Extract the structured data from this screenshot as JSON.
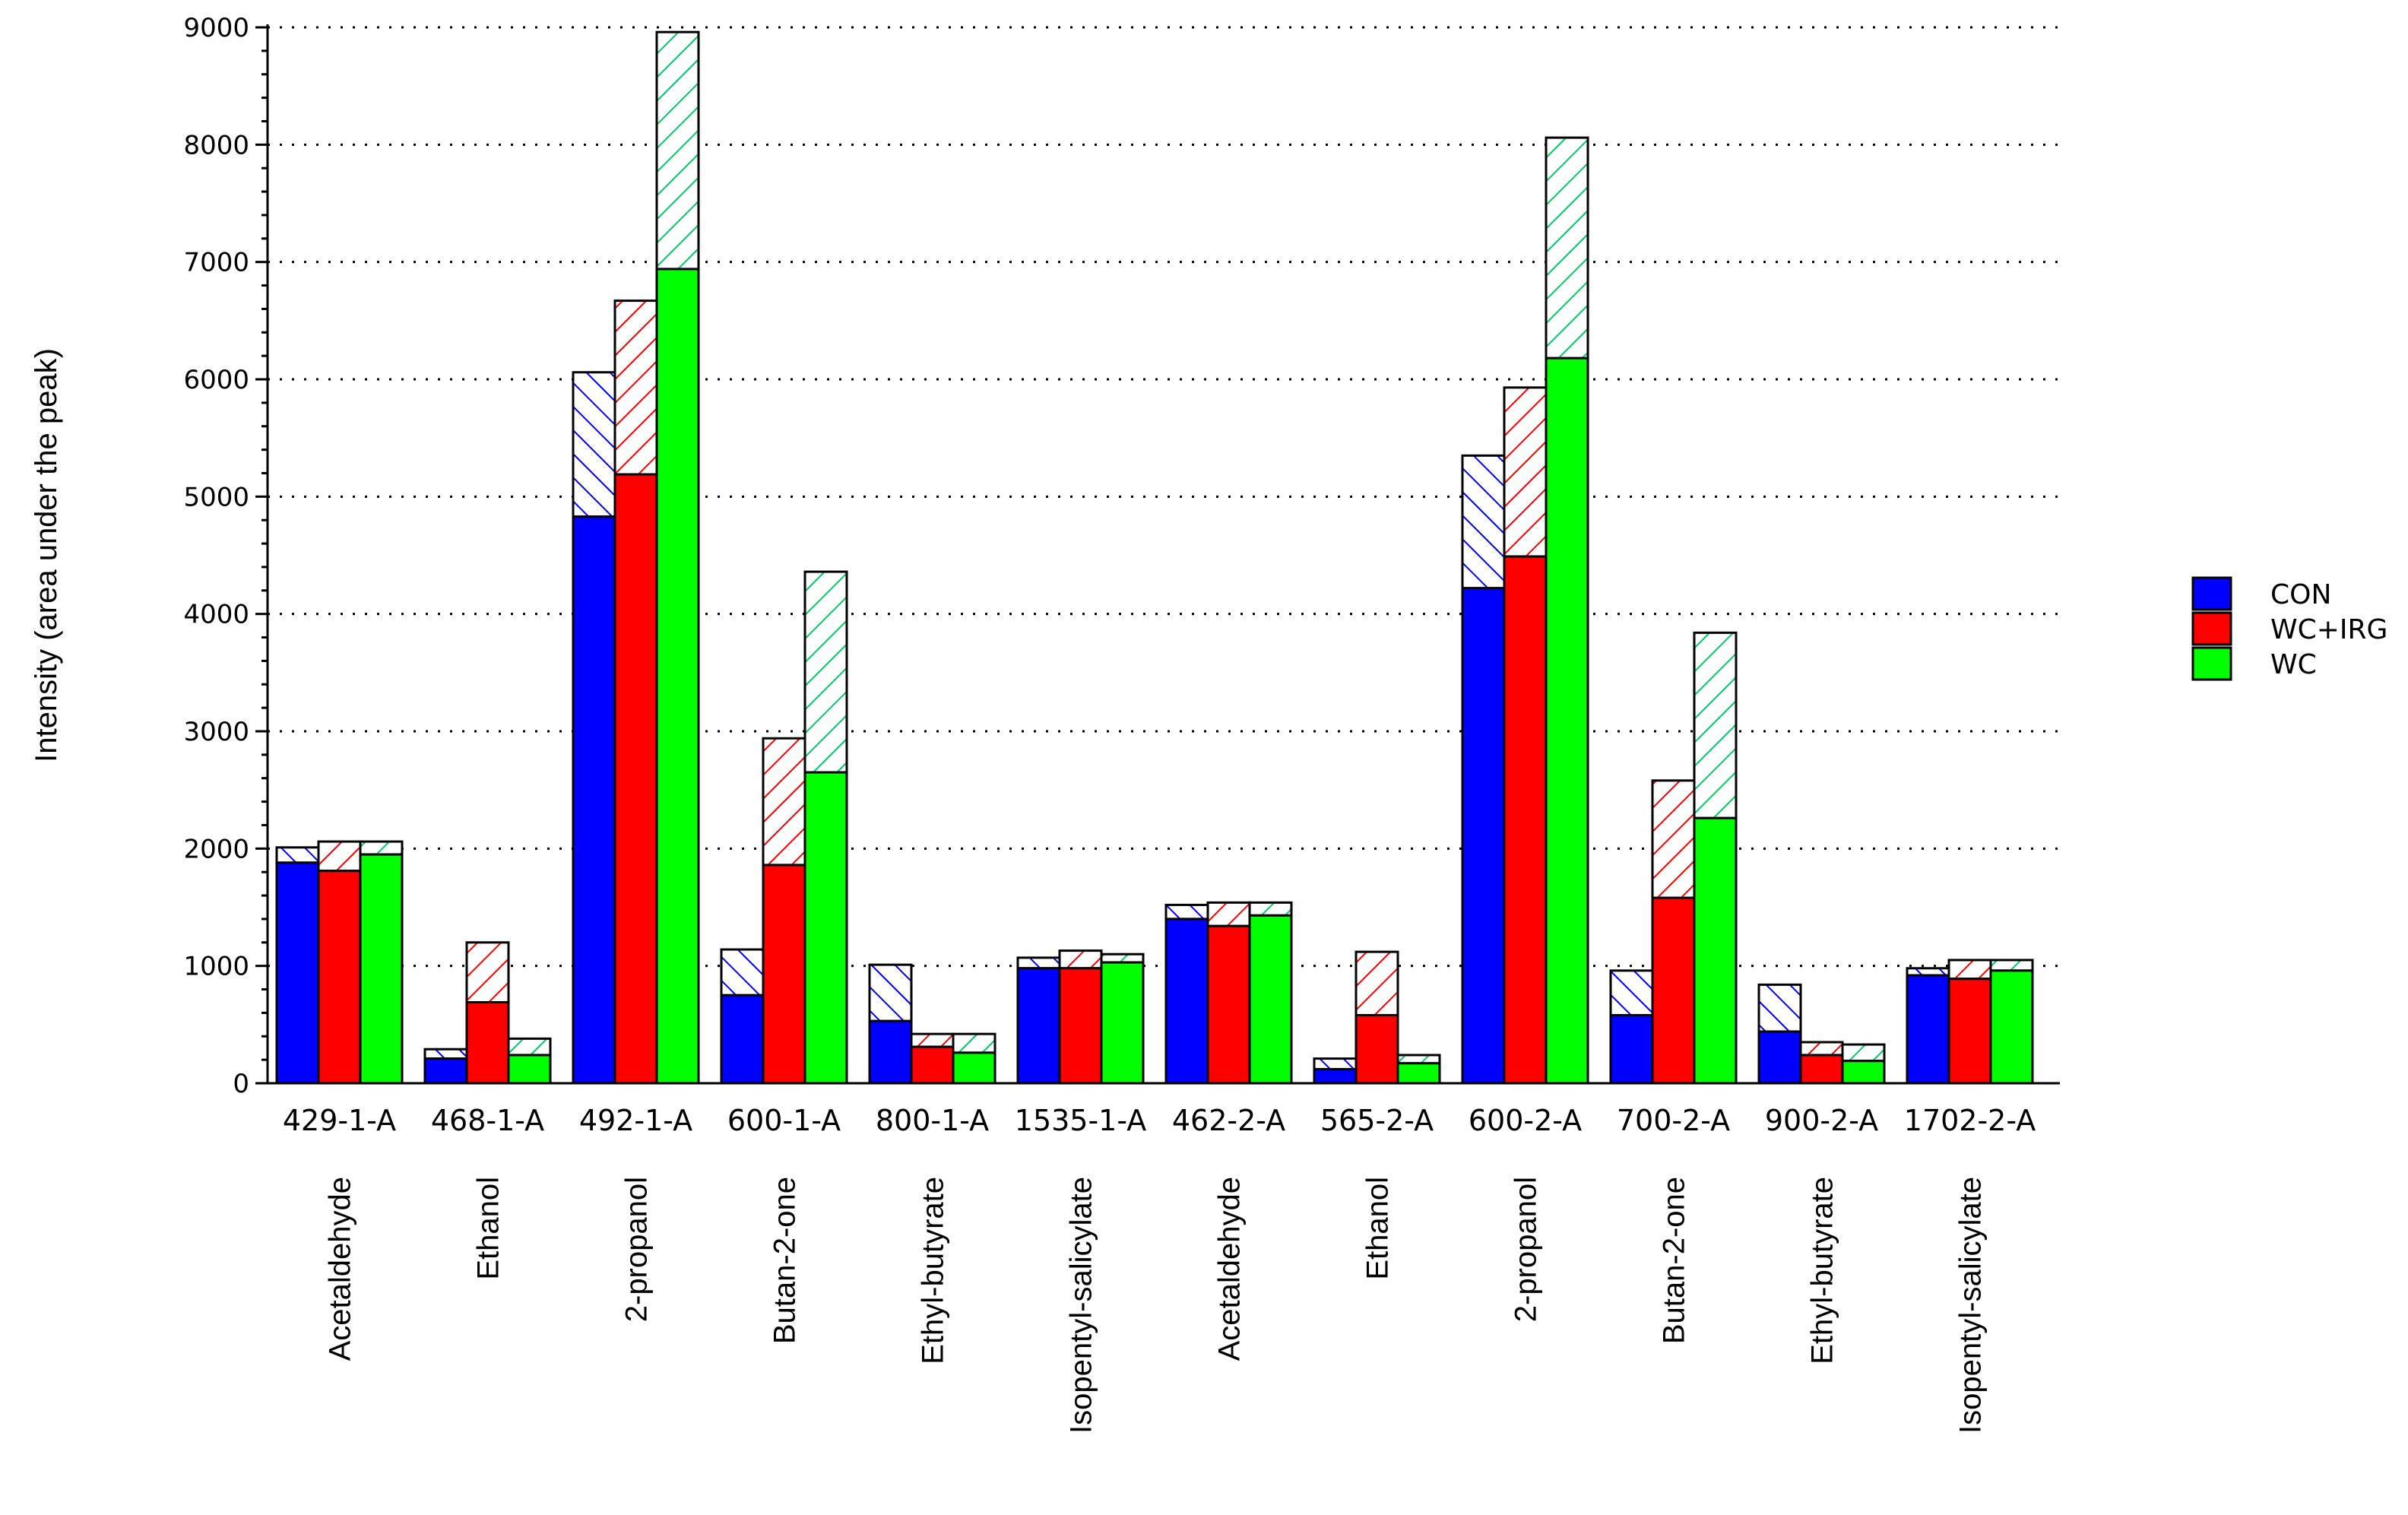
{
  "chart_data": {
    "type": "bar",
    "subtype": "grouped-stacked",
    "title": "",
    "xlabel": "",
    "ylabel": "Intensity (area under the peak)",
    "ylim": [
      0,
      9000
    ],
    "yticks": [
      0,
      1000,
      2000,
      3000,
      4000,
      5000,
      6000,
      7000,
      8000,
      9000
    ],
    "grid": "horizontal-dotted",
    "legend_position": "right",
    "categories": [
      "429-1-A",
      "468-1-A",
      "492-1-A",
      "600-1-A",
      "800-1-A",
      "1535-1-A",
      "462-2-A",
      "565-2-A",
      "600-2-A",
      "700-2-A",
      "900-2-A",
      "1702-2-A"
    ],
    "compounds": [
      "Acetaldehyde",
      "Ethanol",
      "2-propanol",
      "Butan-2-one",
      "Ethyl-butyrate",
      "Isopentyl-salicylate",
      "Acetaldehyde",
      "Ethanol",
      "2-propanol",
      "Butan-2-one",
      "Ethyl-butyrate",
      "Isopentyl-salicylate"
    ],
    "series": [
      {
        "name": "CON",
        "color": "#0000ff",
        "values": [
          1880,
          210,
          4830,
          750,
          530,
          980,
          1400,
          120,
          4220,
          580,
          440,
          920
        ],
        "totals": [
          2010,
          290,
          6060,
          1140,
          1010,
          1070,
          1520,
          210,
          5350,
          960,
          840,
          980
        ]
      },
      {
        "name": "WC+IRG",
        "color": "#ff0000",
        "values": [
          1810,
          690,
          5190,
          1860,
          310,
          980,
          1340,
          580,
          4490,
          1580,
          240,
          890
        ],
        "totals": [
          2060,
          1200,
          6670,
          2940,
          420,
          1130,
          1540,
          1120,
          5930,
          2580,
          350,
          1050
        ]
      },
      {
        "name": "WC",
        "color": "#00ff00",
        "values": [
          1950,
          240,
          6940,
          2650,
          260,
          1030,
          1430,
          170,
          6180,
          2260,
          190,
          960
        ],
        "totals": [
          2060,
          380,
          8960,
          4360,
          420,
          1100,
          1540,
          240,
          8060,
          3840,
          330,
          1050
        ]
      }
    ]
  }
}
